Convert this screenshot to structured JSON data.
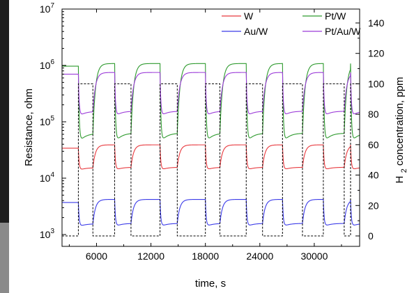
{
  "chart_data": {
    "type": "line",
    "xlabel": "time, s",
    "ylabel_left": "Resistance, ohm",
    "ylabel_right": "H2 concentration, ppm",
    "x_range": [
      0,
      35000
    ],
    "x_ticks": [
      6000,
      12000,
      18000,
      24000,
      30000
    ],
    "y_left_scale": "log",
    "y_left_range": [
      1000,
      10000000
    ],
    "y_left_ticks": [
      {
        "value": 1000,
        "base": "10",
        "exp": "3"
      },
      {
        "value": 10000,
        "base": "10",
        "exp": "4"
      },
      {
        "value": 100000,
        "base": "10",
        "exp": "5"
      },
      {
        "value": 1000000,
        "base": "10",
        "exp": "6"
      },
      {
        "value": 10000000,
        "base": "10",
        "exp": "7"
      }
    ],
    "y_right_range": [
      -8,
      150
    ],
    "y_right_ticks": [
      0,
      20,
      40,
      60,
      80,
      100,
      120,
      140
    ],
    "legend_position": "top-right",
    "pulse_on_times": [
      4000,
      8000,
      13000,
      18000,
      22500,
      26500,
      31000,
      34000
    ],
    "pulse_off_times": [
      5600,
      9800,
      14900,
      19600,
      24300,
      28700,
      33300
    ],
    "pulse_low_ppm": 0,
    "pulse_high_ppm": 100,
    "series": [
      {
        "name": "W",
        "color": "#e8383d",
        "baseline": 34000,
        "recovered": 39000,
        "minimum": 13500
      },
      {
        "name": "Au/W",
        "color": "#3a3ae8",
        "baseline": 3700,
        "recovered": 4200,
        "minimum": 1350
      },
      {
        "name": "Pt/W",
        "color": "#2e9a2e",
        "baseline": 970000,
        "recovered": 1080000,
        "minimum": 40000
      },
      {
        "name": "Pt/Au/W",
        "color": "#9b3ad8",
        "baseline": 700000,
        "recovered": 750000,
        "minimum": 120000
      },
      {
        "name": "H2",
        "color": "#000000",
        "dashed": true
      }
    ]
  }
}
